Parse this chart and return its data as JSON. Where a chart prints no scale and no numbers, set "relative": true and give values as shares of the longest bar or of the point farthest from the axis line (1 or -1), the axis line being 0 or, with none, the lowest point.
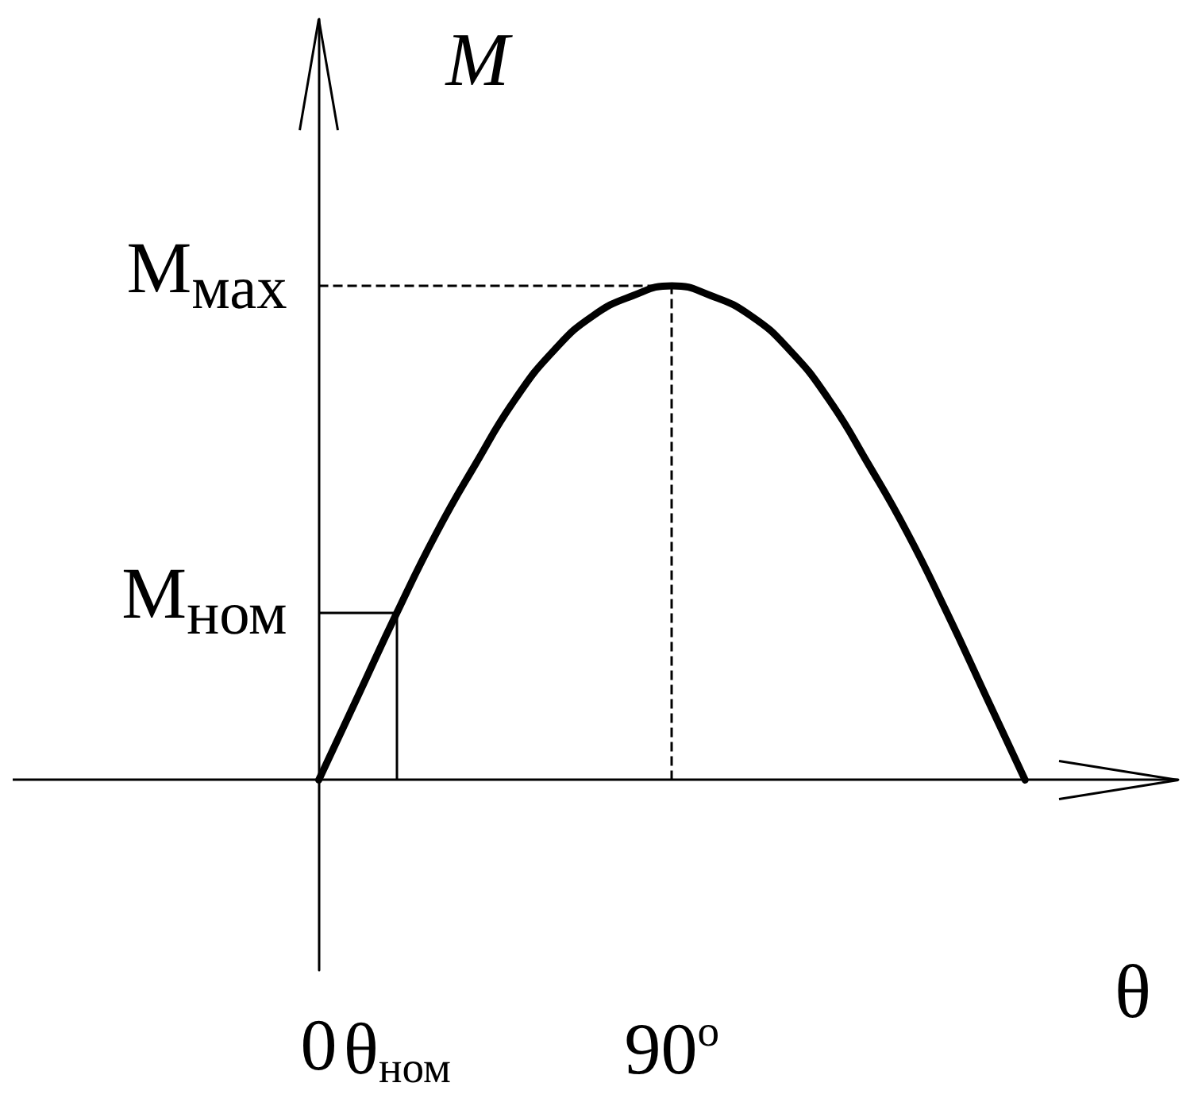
{
  "chart_data": {
    "type": "line",
    "relative": true,
    "xlabel": "θ",
    "ylabel": "M",
    "x": [
      0,
      10,
      20,
      30,
      40,
      50,
      60,
      70,
      80,
      90,
      100,
      110,
      120,
      130,
      140,
      150,
      160,
      170,
      180
    ],
    "series": [
      {
        "color": "#000000",
        "values": [
          0,
          0.17,
          0.34,
          0.5,
          0.64,
          0.77,
          0.87,
          0.94,
          0.98,
          1,
          0.98,
          0.94,
          0.87,
          0.77,
          0.64,
          0.5,
          0.34,
          0.17,
          0
        ]
      }
    ],
    "xlim": [
      -78,
      219
    ],
    "xticks": [
      {
        "value": 0,
        "label": "0"
      },
      {
        "value": 20,
        "label": "θ$_{ном}$"
      },
      {
        "value": 90,
        "label": "90$^{o}$"
      }
    ],
    "ref_lines": [
      {
        "axis": "y",
        "value": 1,
        "label": "M$_{мах}$",
        "line_style": "dashed",
        "color": "#000000"
      },
      {
        "axis": "x",
        "value": 90,
        "line_style": "dashed",
        "color": "#000000"
      },
      {
        "axis": "y",
        "value": 0.34,
        "label": "M$_{ном}$",
        "line_style": "solid",
        "color": "#000000"
      },
      {
        "axis": "x",
        "value": 20,
        "line_style": "solid",
        "color": "#000000"
      }
    ],
    "marker": "none",
    "line_style": "solid",
    "grid": false
  }
}
